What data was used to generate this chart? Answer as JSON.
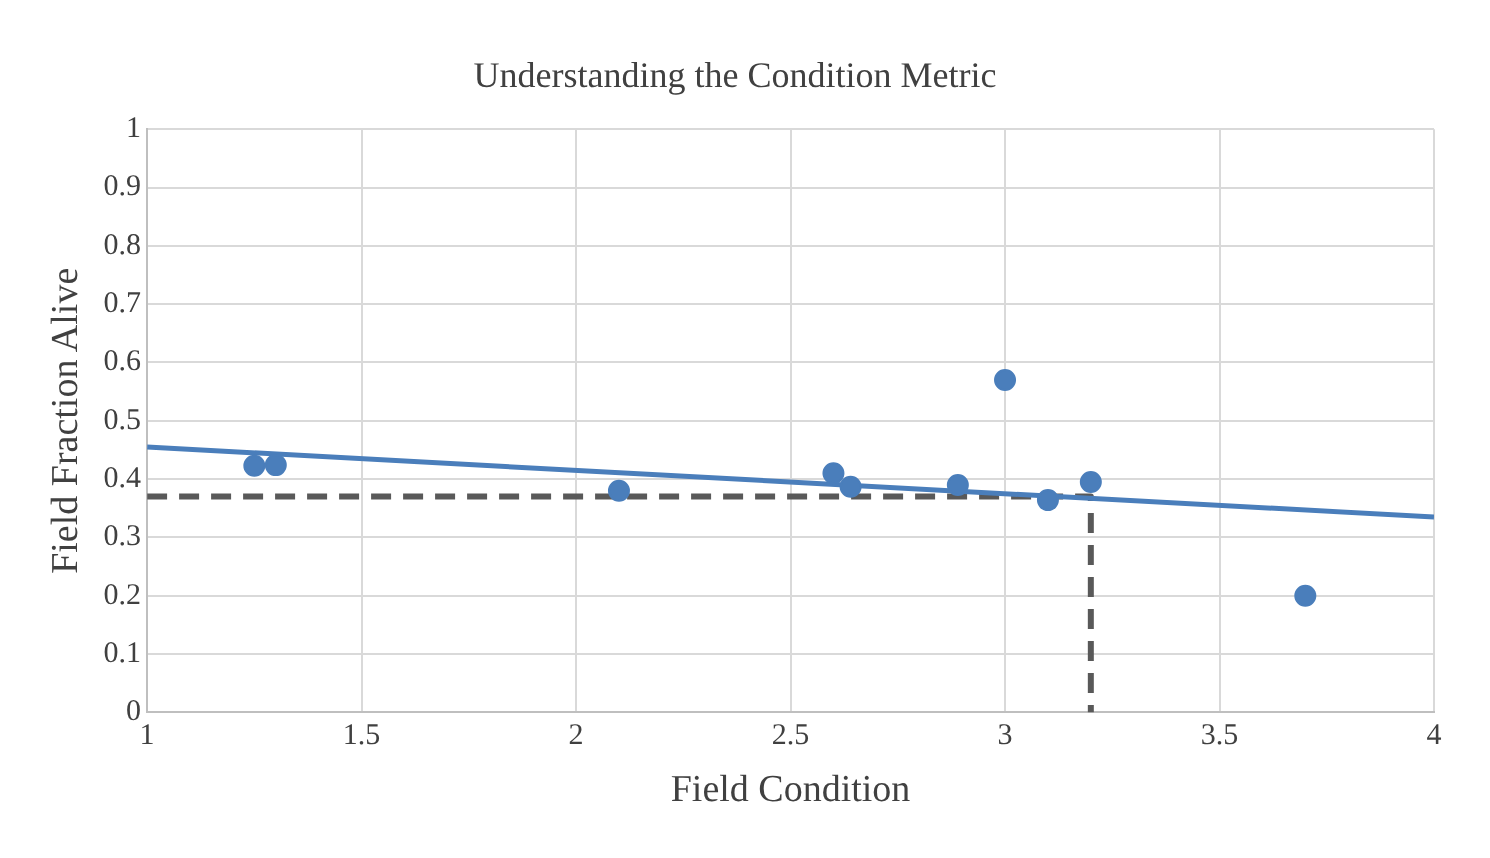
{
  "chart_data": {
    "type": "scatter",
    "title": "Understanding the Condition Metric",
    "xlabel": "Field Condition",
    "ylabel": "Field Fraction Alive",
    "xlim": [
      1,
      4
    ],
    "xticks": [
      1,
      1.5,
      2,
      2.5,
      3,
      3.5,
      4
    ],
    "ylim": [
      0,
      1
    ],
    "yticks": [
      0,
      0.1,
      0.2,
      0.3,
      0.4,
      0.5,
      0.6,
      0.7,
      0.8,
      0.9,
      1
    ],
    "grid": true,
    "legend": false,
    "marker": "circle",
    "series": [
      {
        "color": "#4a7ebb",
        "x": [
          1.25,
          1.3,
          2.1,
          2.6,
          2.64,
          2.89,
          3.0,
          3.1,
          3.2,
          3.7
        ],
        "values": [
          0.423,
          0.424,
          0.38,
          0.41,
          0.387,
          0.39,
          0.57,
          0.364,
          0.395,
          0.2
        ]
      },
      {
        "type": "line",
        "color": "#4a7ebb",
        "marker": "none",
        "line_style": "solid",
        "x": [
          1,
          4
        ],
        "values": [
          0.455,
          0.335
        ]
      },
      {
        "type": "line",
        "color": "#595959",
        "marker": "none",
        "line_style": "dashed",
        "x": [
          1,
          3.2,
          3.2
        ],
        "values": [
          0.37,
          0.37,
          0
        ]
      }
    ]
  }
}
